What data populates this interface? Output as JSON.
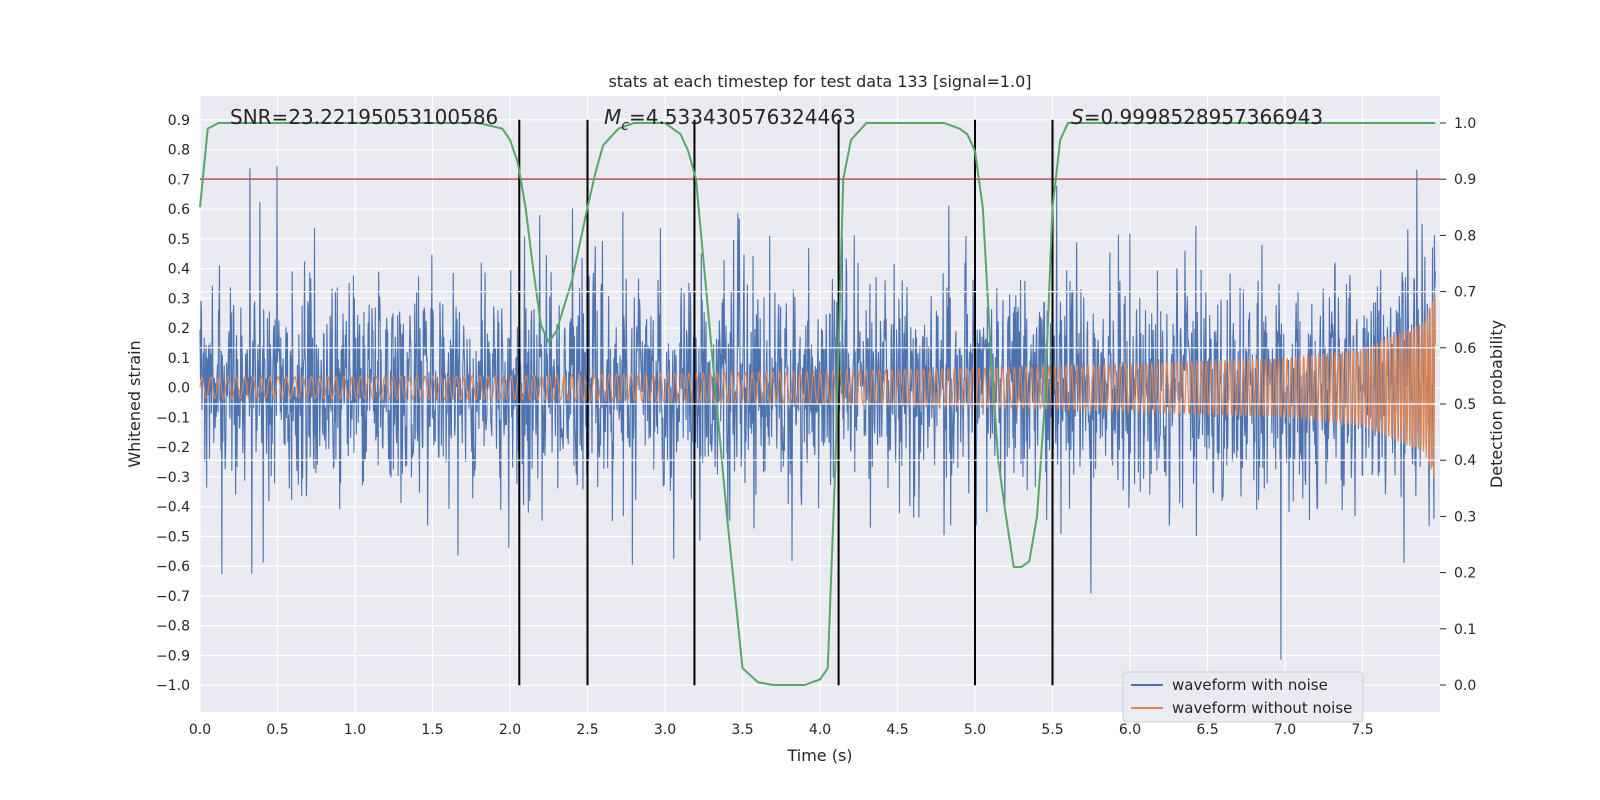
{
  "chart_data": {
    "type": "line",
    "title": "stats at each timestep for test data 133 [signal=1.0]",
    "xlabel": "Time (s)",
    "ylabel": "Whitened strain",
    "y2label": "Detection probability",
    "xlim": [
      0.0,
      8.0
    ],
    "ylim": [
      -1.09,
      0.98
    ],
    "y2lim": [
      -0.048,
      1.048
    ],
    "x_ticks": [
      "0.0",
      "0.5",
      "1.0",
      "1.5",
      "2.0",
      "2.5",
      "3.0",
      "3.5",
      "4.0",
      "4.5",
      "5.0",
      "5.5",
      "6.0",
      "6.5",
      "7.0",
      "7.5"
    ],
    "y_ticks": [
      "0.9",
      "0.8",
      "0.7",
      "0.6",
      "0.5",
      "0.4",
      "0.3",
      "0.2",
      "0.1",
      "0.0",
      "−0.1",
      "−0.2",
      "−0.3",
      "−0.4",
      "−0.5",
      "−0.6",
      "−0.7",
      "−0.8",
      "−0.9",
      "−1.0"
    ],
    "y2_ticks": [
      "1.0",
      "0.9",
      "0.8",
      "0.7",
      "0.6",
      "0.5",
      "0.4",
      "0.3",
      "0.2",
      "0.1",
      "0.0"
    ],
    "grid": true,
    "legend_position": "lower-right",
    "annotations": {
      "snr": "SNR=23.22195053100586",
      "mc_symbol": "M",
      "mc_sub": "c",
      "mc_value": "=4.533430576324463",
      "s_symbol": "S",
      "s_value": "=0.9998528957366943"
    },
    "threshold": {
      "value": 0.9,
      "axis": "y2",
      "color": "#c44e52"
    },
    "segment_boundaries_s": [
      2.06,
      2.5,
      3.19,
      4.12,
      5.0,
      5.5
    ],
    "series": [
      {
        "name": "waveform with noise",
        "color": "#4c72b0",
        "axis": "y",
        "description_range": [
          -1.0,
          0.89
        ]
      },
      {
        "name": "waveform without noise",
        "color": "#dd8452",
        "axis": "y",
        "amplitude_envelope": {
          "x": [
            0.0,
            2.0,
            4.0,
            5.0,
            6.0,
            7.0,
            7.5,
            7.9,
            8.0
          ],
          "y": [
            0.035,
            0.04,
            0.055,
            0.065,
            0.08,
            0.1,
            0.13,
            0.22,
            0.37
          ]
        }
      },
      {
        "name": "",
        "color": "#55a868",
        "axis": "y2",
        "x": [
          0.0,
          0.05,
          0.12,
          0.3,
          0.5,
          1.0,
          1.5,
          1.8,
          1.95,
          2.0,
          2.05,
          2.1,
          2.15,
          2.2,
          2.25,
          2.3,
          2.4,
          2.5,
          2.55,
          2.6,
          2.7,
          2.8,
          2.9,
          3.0,
          3.1,
          3.15,
          3.2,
          3.3,
          3.4,
          3.5,
          3.6,
          3.7,
          3.8,
          3.9,
          4.0,
          4.05,
          4.1,
          4.15,
          4.2,
          4.3,
          4.5,
          4.8,
          4.9,
          4.95,
          5.0,
          5.05,
          5.1,
          5.15,
          5.2,
          5.25,
          5.3,
          5.35,
          5.4,
          5.45,
          5.5,
          5.55,
          5.6,
          5.7,
          6.0,
          7.0,
          7.97
        ],
        "y": [
          0.85,
          0.99,
          1.0,
          1.0,
          1.0,
          1.0,
          1.0,
          1.0,
          0.99,
          0.97,
          0.93,
          0.85,
          0.74,
          0.64,
          0.61,
          0.63,
          0.72,
          0.85,
          0.91,
          0.96,
          0.99,
          1.0,
          1.0,
          1.0,
          0.98,
          0.95,
          0.9,
          0.6,
          0.3,
          0.03,
          0.005,
          0.0,
          0.0,
          0.0,
          0.01,
          0.03,
          0.4,
          0.9,
          0.97,
          1.0,
          1.0,
          1.0,
          0.99,
          0.98,
          0.95,
          0.85,
          0.6,
          0.4,
          0.3,
          0.21,
          0.21,
          0.22,
          0.3,
          0.5,
          0.85,
          0.97,
          1.0,
          1.0,
          1.0,
          1.0,
          1.0
        ]
      }
    ]
  }
}
